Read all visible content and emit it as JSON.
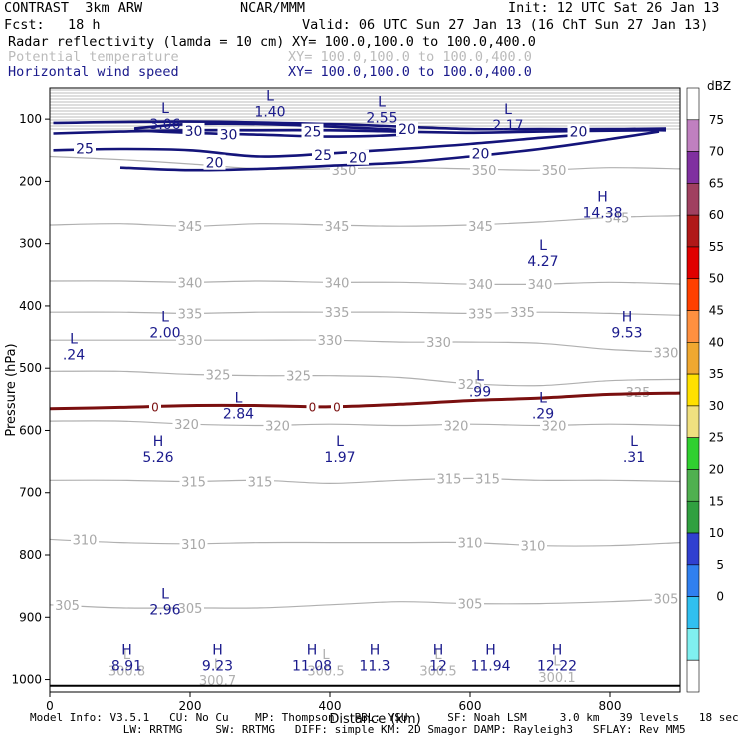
{
  "header": {
    "model": "CONTRAST  3km ARW",
    "center": "NCAR/MMM",
    "init": "Init: 12 UTC Sat 26 Jan 13",
    "fcst_label": "Fcst:",
    "fcst_value": "18 h",
    "valid": "Valid: 06 UTC Sun 27 Jan 13 (16 ChT Sun 27 Jan 13)",
    "fields": [
      {
        "name": "Radar reflectivity (lamda = 10 cm)",
        "xy": "XY= 100.0,100.0 to 100.0,400.0",
        "color": "#000000"
      },
      {
        "name": "Potential temperature",
        "xy": "XY= 100.0,100.0 to 100.0,400.0",
        "color": "#bbbbbb"
      },
      {
        "name": "Horizontal wind speed",
        "xy": "XY= 100.0,100.0 to 100.0,400.0",
        "color": "#1a1a8c"
      }
    ]
  },
  "footer": {
    "line1": "Model Info: V3.5.1   CU: No Cu    MP: Thompson   PBL: YSU      SF: Noah LSM     3.0 km   39 levels   18 sec",
    "line2": "              LW: RRTMG     SW: RRTMG   DIFF: simple KM: 2D Smagor DAMP: Rayleigh3   SFLAY: Rev MM5"
  },
  "chart_data": {
    "type": "cross-section contour",
    "xlabel": "Distance (km)",
    "ylabel": "Pressure (hPa)",
    "xlim": [
      0,
      900
    ],
    "ylim": [
      1020,
      50
    ],
    "x_ticks": [
      0,
      200,
      400,
      600,
      800
    ],
    "y_ticks": [
      100,
      200,
      300,
      400,
      500,
      600,
      700,
      800,
      900,
      1000
    ],
    "colorbar": {
      "title": "dBZ",
      "labels": [
        "75",
        "70",
        "65",
        "60",
        "55",
        "50",
        "45",
        "40",
        "35",
        "30",
        "25",
        "20",
        "15",
        "10",
        "5",
        "0"
      ],
      "colors": [
        "#ffffff",
        "#c080c0",
        "#8030a0",
        "#a04060",
        "#b01818",
        "#e00000",
        "#ff4000",
        "#ff9040",
        "#f0a830",
        "#ffe000",
        "#f0e080",
        "#30d030",
        "#50b050",
        "#30a040",
        "#3040d0",
        "#3080f0",
        "#30c0f0",
        "#80f0f0",
        "#ffffff"
      ]
    },
    "theta_contours": [
      {
        "value": 350,
        "points": [
          [
            0,
            160
          ],
          [
            100,
            165
          ],
          [
            200,
            172
          ],
          [
            300,
            180
          ],
          [
            400,
            180
          ],
          [
            500,
            178
          ],
          [
            600,
            180
          ],
          [
            700,
            182
          ],
          [
            800,
            178
          ],
          [
            900,
            180
          ]
        ],
        "labels": [
          [
            420,
            182
          ],
          [
            620,
            182
          ],
          [
            720,
            182
          ]
        ]
      },
      {
        "value": 345,
        "points": [
          [
            0,
            270
          ],
          [
            100,
            268
          ],
          [
            200,
            272
          ],
          [
            300,
            268
          ],
          [
            400,
            270
          ],
          [
            500,
            272
          ],
          [
            600,
            270
          ],
          [
            700,
            265
          ],
          [
            800,
            258
          ],
          [
            900,
            255
          ]
        ],
        "labels": [
          [
            200,
            272
          ],
          [
            410,
            272
          ],
          [
            615,
            272
          ],
          [
            810,
            258
          ]
        ]
      },
      {
        "value": 340,
        "points": [
          [
            0,
            360
          ],
          [
            100,
            360
          ],
          [
            200,
            362
          ],
          [
            300,
            360
          ],
          [
            400,
            362
          ],
          [
            500,
            362
          ],
          [
            600,
            365
          ],
          [
            700,
            365
          ],
          [
            800,
            362
          ],
          [
            900,
            365
          ]
        ],
        "labels": [
          [
            200,
            362
          ],
          [
            410,
            362
          ],
          [
            615,
            365
          ],
          [
            700,
            365
          ]
        ]
      },
      {
        "value": 335,
        "points": [
          [
            0,
            410
          ],
          [
            100,
            410
          ],
          [
            200,
            412
          ],
          [
            300,
            410
          ],
          [
            400,
            410
          ],
          [
            500,
            410
          ],
          [
            600,
            412
          ],
          [
            700,
            410
          ],
          [
            800,
            412
          ],
          [
            900,
            415
          ]
        ],
        "labels": [
          [
            200,
            412
          ],
          [
            410,
            410
          ],
          [
            615,
            412
          ],
          [
            675,
            410
          ]
        ]
      },
      {
        "value": 330,
        "points": [
          [
            0,
            455
          ],
          [
            100,
            455
          ],
          [
            200,
            455
          ],
          [
            300,
            455
          ],
          [
            400,
            455
          ],
          [
            500,
            458
          ],
          [
            600,
            458
          ],
          [
            700,
            460
          ],
          [
            800,
            470
          ],
          [
            900,
            475
          ]
        ],
        "labels": [
          [
            200,
            455
          ],
          [
            400,
            455
          ],
          [
            555,
            458
          ],
          [
            880,
            475
          ]
        ]
      },
      {
        "value": 325,
        "points": [
          [
            0,
            505
          ],
          [
            100,
            505
          ],
          [
            200,
            510
          ],
          [
            300,
            512
          ],
          [
            400,
            512
          ],
          [
            500,
            515
          ],
          [
            600,
            525
          ],
          [
            700,
            528
          ],
          [
            800,
            520
          ],
          [
            900,
            518
          ]
        ],
        "labels": [
          [
            240,
            510
          ],
          [
            355,
            512
          ],
          [
            600,
            525
          ],
          [
            840,
            538
          ]
        ]
      },
      {
        "value": 320,
        "points": [
          [
            0,
            585
          ],
          [
            100,
            585
          ],
          [
            200,
            590
          ],
          [
            300,
            592
          ],
          [
            400,
            590
          ],
          [
            500,
            592
          ],
          [
            600,
            590
          ],
          [
            700,
            592
          ],
          [
            800,
            590
          ],
          [
            900,
            592
          ]
        ],
        "labels": [
          [
            195,
            590
          ],
          [
            325,
            592
          ],
          [
            580,
            592
          ],
          [
            720,
            592
          ]
        ]
      },
      {
        "value": 315,
        "points": [
          [
            0,
            680
          ],
          [
            100,
            680
          ],
          [
            200,
            682
          ],
          [
            300,
            680
          ],
          [
            400,
            685
          ],
          [
            500,
            680
          ],
          [
            600,
            677
          ],
          [
            700,
            680
          ],
          [
            800,
            680
          ],
          [
            900,
            682
          ]
        ],
        "labels": [
          [
            205,
            682
          ],
          [
            300,
            682
          ],
          [
            570,
            677
          ],
          [
            625,
            677
          ]
        ]
      },
      {
        "value": 310,
        "points": [
          [
            0,
            775
          ],
          [
            100,
            780
          ],
          [
            200,
            782
          ],
          [
            300,
            780
          ],
          [
            400,
            780
          ],
          [
            500,
            780
          ],
          [
            600,
            780
          ],
          [
            700,
            785
          ],
          [
            800,
            785
          ],
          [
            900,
            780
          ]
        ],
        "labels": [
          [
            50,
            775
          ],
          [
            205,
            782
          ],
          [
            600,
            780
          ],
          [
            690,
            785
          ]
        ]
      },
      {
        "value": 305,
        "points": [
          [
            0,
            880
          ],
          [
            100,
            885
          ],
          [
            200,
            885
          ],
          [
            300,
            885
          ],
          [
            400,
            880
          ],
          [
            500,
            875
          ],
          [
            600,
            878
          ],
          [
            700,
            878
          ],
          [
            800,
            875
          ],
          [
            900,
            870
          ]
        ],
        "labels": [
          [
            25,
            880
          ],
          [
            200,
            885
          ],
          [
            600,
            878
          ],
          [
            880,
            870
          ]
        ]
      }
    ],
    "wind_contours": [
      {
        "value": 30,
        "points": [
          [
            120,
            115
          ],
          [
            200,
            108
          ],
          [
            300,
            108
          ],
          [
            400,
            112
          ],
          [
            500,
            118
          ],
          [
            500,
            125
          ],
          [
            400,
            128
          ],
          [
            300,
            125
          ],
          [
            200,
            122
          ],
          [
            120,
            118
          ]
        ],
        "labels": [
          [
            205,
            119
          ],
          [
            255,
            125
          ]
        ]
      },
      {
        "value": 25,
        "points": [
          [
            5,
            123
          ],
          [
            100,
            120
          ],
          [
            200,
            118
          ],
          [
            300,
            118
          ],
          [
            400,
            118
          ],
          [
            500,
            120
          ],
          [
            600,
            122
          ],
          [
            700,
            120
          ],
          [
            850,
            118
          ],
          [
            880,
            118
          ]
        ],
        "labels": [
          [
            50,
            147
          ],
          [
            375,
            120
          ],
          [
            390,
            158
          ]
        ]
      },
      {
        "value": 20,
        "points": [
          [
            5,
            106
          ],
          [
            200,
            104
          ],
          [
            400,
            108
          ],
          [
            500,
            112
          ],
          [
            600,
            116
          ],
          [
            700,
            116
          ],
          [
            800,
            116
          ],
          [
            880,
            115
          ]
        ],
        "labels": [
          [
            510,
            116
          ],
          [
            755,
            120
          ],
          [
            440,
            162
          ],
          [
            615,
            155
          ],
          [
            235,
            170
          ]
        ]
      }
    ],
    "freezing_level": {
      "value": 0,
      "points": [
        [
          0,
          565
        ],
        [
          100,
          563
        ],
        [
          200,
          560
        ],
        [
          300,
          560
        ],
        [
          400,
          562
        ],
        [
          500,
          558
        ],
        [
          600,
          552
        ],
        [
          700,
          548
        ],
        [
          800,
          542
        ],
        [
          900,
          540
        ]
      ],
      "labels": [
        [
          150,
          563
        ],
        [
          375,
          563
        ],
        [
          410,
          563
        ]
      ]
    },
    "surface_theta_labels": [
      "300.8",
      "300.7",
      "300.5",
      "300.5",
      "300.1"
    ],
    "extrema": [
      {
        "type": "L",
        "value": "1.40",
        "x": 300,
        "p": 70
      },
      {
        "type": "L",
        "value": "2.55",
        "x": 460,
        "p": 80
      },
      {
        "type": "L",
        "value": "3.06",
        "x": 150,
        "p": 90
      },
      {
        "type": "L",
        "value": "2.17",
        "x": 640,
        "p": 92
      },
      {
        "type": "H",
        "value": "14.38",
        "x": 775,
        "p": 232
      },
      {
        "type": "L",
        "value": "4.27",
        "x": 690,
        "p": 310
      },
      {
        "type": "L",
        "value": "2.00",
        "x": 150,
        "p": 425
      },
      {
        "type": "H",
        "value": "9.53",
        "x": 810,
        "p": 425
      },
      {
        "type": "L",
        "value": ".24",
        "x": 20,
        "p": 460
      },
      {
        "type": "L",
        "value": ".99",
        "x": 600,
        "p": 520
      },
      {
        "type": "L",
        "value": "2.84",
        "x": 255,
        "p": 555
      },
      {
        "type": "L",
        "value": ".29",
        "x": 690,
        "p": 555
      },
      {
        "type": "H",
        "value": "5.26",
        "x": 140,
        "p": 625
      },
      {
        "type": "L",
        "value": "1.97",
        "x": 400,
        "p": 625
      },
      {
        "type": "L",
        "value": ".31",
        "x": 820,
        "p": 625
      },
      {
        "type": "L",
        "value": "2.96",
        "x": 150,
        "p": 870
      },
      {
        "type": "H",
        "value": "8.91",
        "x": 95,
        "p": 960
      },
      {
        "type": "H",
        "value": "9.23",
        "x": 225,
        "p": 960
      },
      {
        "type": "H",
        "value": "11.08",
        "x": 360,
        "p": 960
      },
      {
        "type": "H",
        "value": "11.3",
        "x": 450,
        "p": 960
      },
      {
        "type": "H",
        "value": "12",
        "x": 540,
        "p": 960
      },
      {
        "type": "H",
        "value": "11.94",
        "x": 615,
        "p": 960
      },
      {
        "type": "H",
        "value": "12.22",
        "x": 710,
        "p": 960
      }
    ]
  }
}
